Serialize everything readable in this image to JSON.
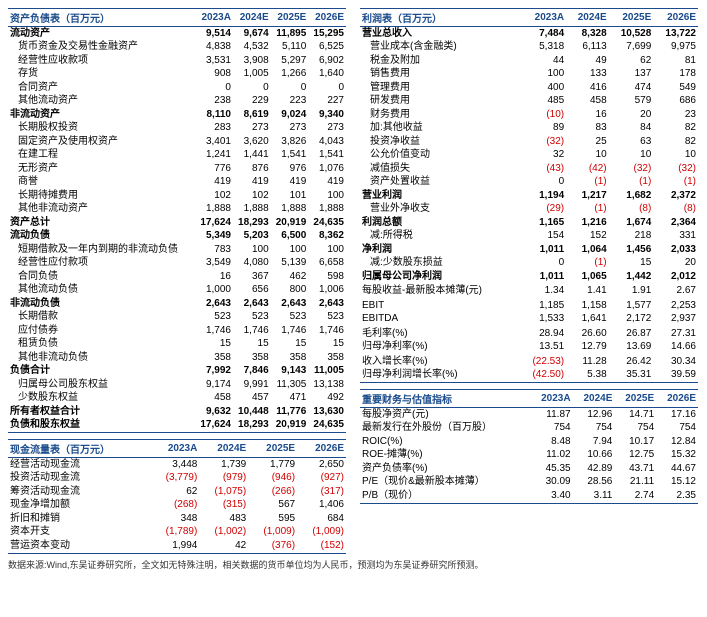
{
  "left": {
    "balance": {
      "title": "资产负债表（百万元）",
      "cols": [
        "2023A",
        "2024E",
        "2025E",
        "2026E"
      ],
      "rows": [
        {
          "label": "流动资产",
          "v": [
            "9,514",
            "9,674",
            "11,895",
            "15,295"
          ],
          "bold": true
        },
        {
          "label": "货币资金及交易性金融资产",
          "v": [
            "4,838",
            "4,532",
            "5,110",
            "6,525"
          ],
          "indent": true
        },
        {
          "label": "经营性应收款项",
          "v": [
            "3,531",
            "3,908",
            "5,297",
            "6,902"
          ],
          "indent": true
        },
        {
          "label": "存货",
          "v": [
            "908",
            "1,005",
            "1,266",
            "1,640"
          ],
          "indent": true
        },
        {
          "label": "合同资产",
          "v": [
            "0",
            "0",
            "0",
            "0"
          ],
          "indent": true
        },
        {
          "label": "其他流动资产",
          "v": [
            "238",
            "229",
            "223",
            "227"
          ],
          "indent": true
        },
        {
          "label": "非流动资产",
          "v": [
            "8,110",
            "8,619",
            "9,024",
            "9,340"
          ],
          "bold": true
        },
        {
          "label": "长期股权投资",
          "v": [
            "283",
            "273",
            "273",
            "273"
          ],
          "indent": true
        },
        {
          "label": "固定资产及使用权资产",
          "v": [
            "3,401",
            "3,620",
            "3,826",
            "4,043"
          ],
          "indent": true
        },
        {
          "label": "在建工程",
          "v": [
            "1,241",
            "1,441",
            "1,541",
            "1,541"
          ],
          "indent": true
        },
        {
          "label": "无形资产",
          "v": [
            "776",
            "876",
            "976",
            "1,076"
          ],
          "indent": true
        },
        {
          "label": "商誉",
          "v": [
            "419",
            "419",
            "419",
            "419"
          ],
          "indent": true
        },
        {
          "label": "长期待摊费用",
          "v": [
            "102",
            "102",
            "101",
            "100"
          ],
          "indent": true
        },
        {
          "label": "其他非流动资产",
          "v": [
            "1,888",
            "1,888",
            "1,888",
            "1,888"
          ],
          "indent": true
        },
        {
          "label": "资产总计",
          "v": [
            "17,624",
            "18,293",
            "20,919",
            "24,635"
          ],
          "bold": true
        },
        {
          "label": "流动负债",
          "v": [
            "5,349",
            "5,203",
            "6,500",
            "8,362"
          ],
          "bold": true
        },
        {
          "label": "短期借款及一年内到期的非流动负债",
          "v": [
            "783",
            "100",
            "100",
            "100"
          ],
          "indent": true
        },
        {
          "label": "经营性应付款项",
          "v": [
            "3,549",
            "4,080",
            "5,139",
            "6,658"
          ],
          "indent": true
        },
        {
          "label": "合同负债",
          "v": [
            "16",
            "367",
            "462",
            "598"
          ],
          "indent": true
        },
        {
          "label": "其他流动负债",
          "v": [
            "1,000",
            "656",
            "800",
            "1,006"
          ],
          "indent": true
        },
        {
          "label": "非流动负债",
          "v": [
            "2,643",
            "2,643",
            "2,643",
            "2,643"
          ],
          "bold": true
        },
        {
          "label": "长期借款",
          "v": [
            "523",
            "523",
            "523",
            "523"
          ],
          "indent": true
        },
        {
          "label": "应付债券",
          "v": [
            "1,746",
            "1,746",
            "1,746",
            "1,746"
          ],
          "indent": true
        },
        {
          "label": "租赁负债",
          "v": [
            "15",
            "15",
            "15",
            "15"
          ],
          "indent": true
        },
        {
          "label": "其他非流动负债",
          "v": [
            "358",
            "358",
            "358",
            "358"
          ],
          "indent": true
        },
        {
          "label": "负债合计",
          "v": [
            "7,992",
            "7,846",
            "9,143",
            "11,005"
          ],
          "bold": true
        },
        {
          "label": "归属母公司股东权益",
          "v": [
            "9,174",
            "9,991",
            "11,305",
            "13,138"
          ],
          "indent": true
        },
        {
          "label": "少数股东权益",
          "v": [
            "458",
            "457",
            "471",
            "492"
          ],
          "indent": true
        },
        {
          "label": "所有者权益合计",
          "v": [
            "9,632",
            "10,448",
            "11,776",
            "13,630"
          ],
          "bold": true
        },
        {
          "label": "负债和股东权益",
          "v": [
            "17,624",
            "18,293",
            "20,919",
            "24,635"
          ],
          "bold": true,
          "end": true
        }
      ]
    },
    "cashflow": {
      "title": "现金流量表（百万元）",
      "cols": [
        "2023A",
        "2024E",
        "2025E",
        "2026E"
      ],
      "rows": [
        {
          "label": "经营活动现金流",
          "v": [
            "3,448",
            "1,739",
            "1,779",
            "2,650"
          ]
        },
        {
          "label": "投资活动现金流",
          "v": [
            "(3,779)",
            "(979)",
            "(946)",
            "(927)"
          ],
          "neg": [
            true,
            true,
            true,
            true
          ]
        },
        {
          "label": "筹资活动现金流",
          "v": [
            "62",
            "(1,075)",
            "(266)",
            "(317)"
          ],
          "neg": [
            false,
            true,
            true,
            true
          ]
        },
        {
          "label": "现金净增加额",
          "v": [
            "(268)",
            "(315)",
            "567",
            "1,406"
          ],
          "neg": [
            true,
            true,
            false,
            false
          ]
        },
        {
          "label": "折旧和摊销",
          "v": [
            "348",
            "483",
            "595",
            "684"
          ]
        },
        {
          "label": "资本开支",
          "v": [
            "(1,789)",
            "(1,002)",
            "(1,009)",
            "(1,009)"
          ],
          "neg": [
            true,
            true,
            true,
            true
          ]
        },
        {
          "label": "营运资本变动",
          "v": [
            "1,994",
            "42",
            "(376)",
            "(152)"
          ],
          "neg": [
            false,
            false,
            true,
            true
          ],
          "end": true
        }
      ]
    }
  },
  "right": {
    "income": {
      "title": "利润表（百万元）",
      "cols": [
        "2023A",
        "2024E",
        "2025E",
        "2026E"
      ],
      "rows": [
        {
          "label": "营业总收入",
          "v": [
            "7,484",
            "8,328",
            "10,528",
            "13,722"
          ],
          "bold": true
        },
        {
          "label": "营业成本(含金融类)",
          "v": [
            "5,318",
            "6,113",
            "7,699",
            "9,975"
          ],
          "indent": true
        },
        {
          "label": "税金及附加",
          "v": [
            "44",
            "49",
            "62",
            "81"
          ],
          "indent": true
        },
        {
          "label": "销售费用",
          "v": [
            "100",
            "133",
            "137",
            "178"
          ],
          "indent": true
        },
        {
          "label": "管理费用",
          "v": [
            "400",
            "416",
            "474",
            "549"
          ],
          "indent": true
        },
        {
          "label": "研发费用",
          "v": [
            "485",
            "458",
            "579",
            "686"
          ],
          "indent": true
        },
        {
          "label": "财务费用",
          "v": [
            "(10)",
            "16",
            "20",
            "23"
          ],
          "indent": true,
          "neg": [
            true,
            false,
            false,
            false
          ]
        },
        {
          "label": "加:其他收益",
          "v": [
            "89",
            "83",
            "84",
            "82"
          ],
          "indent": true
        },
        {
          "label": "投资净收益",
          "v": [
            "(32)",
            "25",
            "63",
            "82"
          ],
          "indent": true,
          "neg": [
            true,
            false,
            false,
            false
          ]
        },
        {
          "label": "公允价值变动",
          "v": [
            "32",
            "10",
            "10",
            "10"
          ],
          "indent": true
        },
        {
          "label": "减值损失",
          "v": [
            "(43)",
            "(42)",
            "(32)",
            "(32)"
          ],
          "indent": true,
          "neg": [
            true,
            true,
            true,
            true
          ]
        },
        {
          "label": "资产处置收益",
          "v": [
            "0",
            "(1)",
            "(1)",
            "(1)"
          ],
          "indent": true,
          "neg": [
            false,
            true,
            true,
            true
          ]
        },
        {
          "label": "营业利润",
          "v": [
            "1,194",
            "1,217",
            "1,682",
            "2,372"
          ],
          "bold": true
        },
        {
          "label": "营业外净收支",
          "v": [
            "(29)",
            "(1)",
            "(8)",
            "(8)"
          ],
          "indent": true,
          "neg": [
            true,
            true,
            true,
            true
          ]
        },
        {
          "label": "利润总额",
          "v": [
            "1,165",
            "1,216",
            "1,674",
            "2,364"
          ],
          "bold": true
        },
        {
          "label": "减:所得税",
          "v": [
            "154",
            "152",
            "218",
            "331"
          ],
          "indent": true
        },
        {
          "label": "净利润",
          "v": [
            "1,011",
            "1,064",
            "1,456",
            "2,033"
          ],
          "bold": true
        },
        {
          "label": "减:少数股东损益",
          "v": [
            "0",
            "(1)",
            "15",
            "20"
          ],
          "indent": true,
          "neg": [
            false,
            true,
            false,
            false
          ]
        },
        {
          "label": "归属母公司净利润",
          "v": [
            "1,011",
            "1,065",
            "1,442",
            "2,012"
          ],
          "bold": true
        },
        {
          "label": "",
          "v": [
            "",
            "",
            "",
            ""
          ]
        },
        {
          "label": "每股收益-最新股本摊薄(元)",
          "v": [
            "1.34",
            "1.41",
            "1.91",
            "2.67"
          ]
        },
        {
          "label": "",
          "v": [
            "",
            "",
            "",
            ""
          ]
        },
        {
          "label": "EBIT",
          "v": [
            "1,185",
            "1,158",
            "1,577",
            "2,253"
          ]
        },
        {
          "label": "EBITDA",
          "v": [
            "1,533",
            "1,641",
            "2,172",
            "2,937"
          ]
        },
        {
          "label": "",
          "v": [
            "",
            "",
            "",
            ""
          ]
        },
        {
          "label": "毛利率(%)",
          "v": [
            "28.94",
            "26.60",
            "26.87",
            "27.31"
          ]
        },
        {
          "label": "归母净利率(%)",
          "v": [
            "13.51",
            "12.79",
            "13.69",
            "14.66"
          ]
        },
        {
          "label": "",
          "v": [
            "",
            "",
            "",
            ""
          ]
        },
        {
          "label": "收入增长率(%)",
          "v": [
            "(22.53)",
            "11.28",
            "26.42",
            "30.34"
          ],
          "neg": [
            true,
            false,
            false,
            false
          ]
        },
        {
          "label": "归母净利润增长率(%)",
          "v": [
            "(42.50)",
            "5.38",
            "35.31",
            "39.59"
          ],
          "neg": [
            true,
            false,
            false,
            false
          ],
          "end": true
        }
      ]
    },
    "metrics": {
      "title": "重要财务与估值指标",
      "cols": [
        "2023A",
        "2024E",
        "2025E",
        "2026E"
      ],
      "rows": [
        {
          "label": "每股净资产(元)",
          "v": [
            "11.87",
            "12.96",
            "14.71",
            "17.16"
          ]
        },
        {
          "label": "最新发行在外股份（百万股）",
          "v": [
            "754",
            "754",
            "754",
            "754"
          ]
        },
        {
          "label": "ROIC(%)",
          "v": [
            "8.48",
            "7.94",
            "10.17",
            "12.84"
          ]
        },
        {
          "label": "ROE-摊薄(%)",
          "v": [
            "11.02",
            "10.66",
            "12.75",
            "15.32"
          ]
        },
        {
          "label": "资产负债率(%)",
          "v": [
            "45.35",
            "42.89",
            "43.71",
            "44.67"
          ]
        },
        {
          "label": "P/E（现价&最新股本摊薄）",
          "v": [
            "30.09",
            "28.56",
            "21.11",
            "15.12"
          ]
        },
        {
          "label": "P/B（现价）",
          "v": [
            "3.40",
            "3.11",
            "2.74",
            "2.35"
          ],
          "end": true
        }
      ]
    }
  },
  "footnote": "数据来源:Wind,东吴证券研究所，全文如无特殊注明，相关数据的货币单位均为人民币，预测均为东吴证券研究所预测。"
}
